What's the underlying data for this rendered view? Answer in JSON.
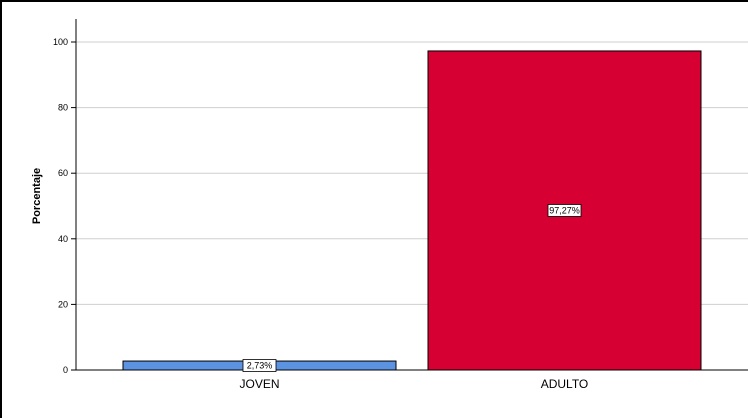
{
  "chart_data": {
    "type": "bar",
    "categories": [
      "JOVEN",
      "ADULTO"
    ],
    "values": [
      2.73,
      97.27
    ],
    "data_labels": [
      "2,73%",
      "97,27%"
    ],
    "colors": [
      "#5b93e0",
      "#d60032"
    ],
    "ylabel": "Porcentaje",
    "xlabel": "",
    "ylim": [
      0,
      100
    ],
    "yticks": [
      0,
      20,
      40,
      60,
      80,
      100
    ],
    "ytick_labels": [
      "0",
      "20",
      "40",
      "60",
      "80",
      "100"
    ],
    "grid": true
  }
}
